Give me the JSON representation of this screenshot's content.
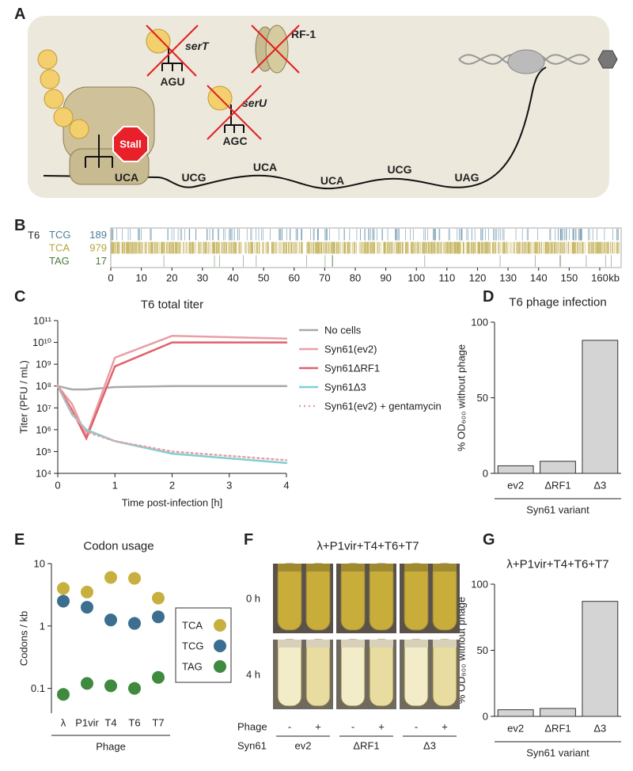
{
  "panel_labels": [
    "A",
    "B",
    "C",
    "D",
    "E",
    "F",
    "G"
  ],
  "diagram": {
    "trnas": [
      {
        "name": "serT",
        "anticodon": "AGU"
      },
      {
        "name": "serU",
        "anticodon": "AGC"
      }
    ],
    "release_factor": "RF-1",
    "stall": "Stall",
    "codons": [
      "UCA",
      "UCG",
      "UCA",
      "UCA",
      "UCG",
      "UAG"
    ]
  },
  "chart_data": [
    {
      "type": "track",
      "label": "T6",
      "rows": [
        {
          "codon": "TCG",
          "count": 189,
          "color": "#4d7c99"
        },
        {
          "codon": "TCA",
          "count": 979,
          "color": "#b8a33a"
        },
        {
          "codon": "TAG",
          "count": 17,
          "color": "#4a7a3a"
        }
      ],
      "xlim": [
        0,
        167
      ],
      "xticks": [
        0,
        10,
        20,
        30,
        40,
        50,
        60,
        70,
        80,
        90,
        100,
        110,
        120,
        130,
        140,
        150,
        160
      ],
      "xlabel": "kb"
    },
    {
      "type": "line",
      "title": "T6 total titer",
      "xlabel": "Time post-infection [h]",
      "ylabel": "Titer (PFU / mL)",
      "log_y": true,
      "x": [
        0,
        0.25,
        0.5,
        1,
        2,
        4
      ],
      "series": [
        {
          "name": "No cells",
          "color": "#a9a9a9",
          "values": [
            100000000,
            70000000,
            70000000,
            90000000,
            100000000,
            100000000
          ]
        },
        {
          "name": "Syn61(ev2)",
          "color": "#e8a0a5",
          "values": [
            100000000,
            15000000,
            500000,
            2000000000,
            20000000000,
            15000000000
          ]
        },
        {
          "name": "Syn61ΔRF1",
          "color": "#e0606a",
          "values": [
            100000000,
            8000000,
            400000,
            800000000,
            10000000000,
            10000000000
          ]
        },
        {
          "name": "Syn61Δ3",
          "color": "#7fd0d3",
          "values": [
            100000000,
            5000000,
            1000000,
            300000,
            80000,
            30000
          ]
        },
        {
          "name": "Syn61(ev2) + gentamycin",
          "color": "#e8a0a5",
          "style": "dotted",
          "values": [
            100000000,
            6000000,
            800000,
            300000,
            100000,
            40000
          ]
        }
      ],
      "xlim": [
        0,
        4
      ],
      "xticks": [
        0,
        1,
        2,
        3,
        4
      ],
      "ylim": [
        10000,
        100000000000
      ],
      "yticks": [
        {
          "value": 10000,
          "label": "10⁴"
        },
        {
          "value": 100000,
          "label": "10⁵"
        },
        {
          "value": 1000000,
          "label": "10⁶"
        },
        {
          "value": 10000000,
          "label": "10⁷"
        },
        {
          "value": 100000000,
          "label": "10⁸"
        },
        {
          "value": 1000000000,
          "label": "10⁹"
        },
        {
          "value": 10000000000,
          "label": "10¹⁰"
        },
        {
          "value": 100000000000,
          "label": "10¹¹"
        }
      ]
    },
    {
      "type": "bar",
      "title": "T6 phage infection",
      "ylabel": "% OD₆₀₀ without phage",
      "categories": [
        "ev2",
        "ΔRF1",
        "Δ3"
      ],
      "values": [
        5,
        8,
        88
      ],
      "color": "#d4d4d4",
      "ylim": [
        0,
        100
      ],
      "yticks": [
        0,
        50,
        100
      ],
      "group_label": "Syn61 variant"
    },
    {
      "type": "scatter",
      "title": "Codon usage",
      "ylabel": "Codons / kb",
      "xlabel": "Phage",
      "log_y": true,
      "categories": [
        "λ",
        "P1vir",
        "T4",
        "T6",
        "T7"
      ],
      "series": [
        {
          "name": "TCA",
          "color": "#c8b040",
          "values": [
            4,
            3.5,
            6,
            5.8,
            2.8
          ]
        },
        {
          "name": "TCG",
          "color": "#3b6e8f",
          "values": [
            2.5,
            2,
            1.25,
            1.1,
            1.4
          ]
        },
        {
          "name": "TAG",
          "color": "#3f8a3f",
          "values": [
            0.08,
            0.12,
            0.11,
            0.1,
            0.15
          ]
        }
      ],
      "ylim": [
        0.04,
        10
      ],
      "yticks": [
        0.1,
        1,
        10
      ]
    },
    {
      "type": "bar",
      "title": "λ+P1vir+T4+T6+T7",
      "ylabel": "% OD₆₀₀ without phage",
      "categories": [
        "ev2",
        "ΔRF1",
        "Δ3"
      ],
      "values": [
        5,
        6,
        87
      ],
      "color": "#d4d4d4",
      "ylim": [
        0,
        100
      ],
      "yticks": [
        0,
        50,
        100
      ],
      "group_label": "Syn61 variant"
    }
  ],
  "photo_panel": {
    "title": "λ+P1vir+T4+T6+T7",
    "timepoints": [
      "0 h",
      "4 h"
    ],
    "phage_row_label": "Phage",
    "phage_states": [
      "-",
      "+",
      "-",
      "+",
      "-",
      "+"
    ],
    "strain_row_label": "Syn61",
    "strains": [
      "ev2",
      "ΔRF1",
      "Δ3"
    ]
  }
}
